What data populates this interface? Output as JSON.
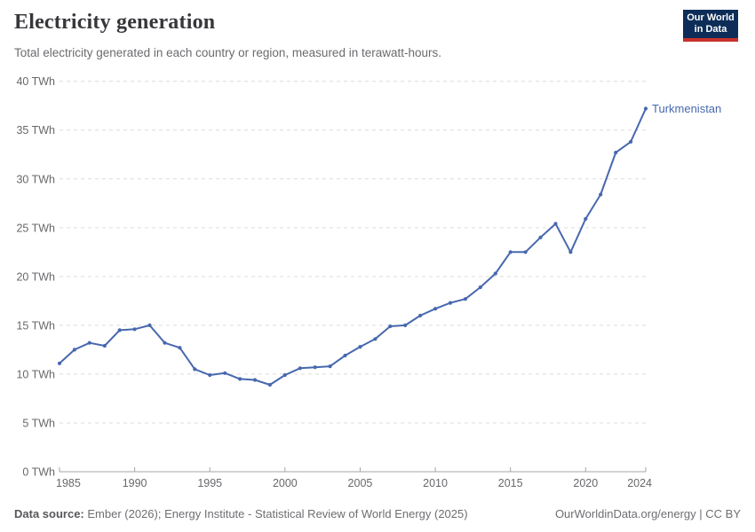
{
  "header": {
    "title": "Electricity generation",
    "subtitle": "Total electricity generated in each country or region, measured in terawatt-hours."
  },
  "logo": {
    "line1": "Our World",
    "line2": "in Data"
  },
  "footer": {
    "source_label": "Data source:",
    "source_text": " Ember (2026); Energy Institute - Statistical Review of World Energy (2025)",
    "credit": "OurWorldinData.org/energy | CC BY"
  },
  "colors": {
    "line": "#4768ae",
    "axis": "#a5a5a5",
    "gridline": "#dcdcdc",
    "tick_text": "#68686c",
    "logo_navy": "#0d2d58",
    "logo_red": "#c7312a"
  },
  "chart_data": {
    "type": "line",
    "title": "Electricity generation",
    "unit": "TWh",
    "xlabel": "",
    "ylabel": "",
    "xlim": [
      1985,
      2024
    ],
    "ylim": [
      0,
      40
    ],
    "grid": "horizontal-dashed",
    "legend": "end-of-line-label",
    "xticks": [
      1985,
      1990,
      1995,
      2000,
      2005,
      2010,
      2015,
      2020,
      2024
    ],
    "yticks": [
      0,
      5,
      10,
      15,
      20,
      25,
      30,
      35,
      40
    ],
    "ytick_suffix": " TWh",
    "x": [
      1985,
      1986,
      1987,
      1988,
      1989,
      1990,
      1991,
      1992,
      1993,
      1994,
      1995,
      1996,
      1997,
      1998,
      1999,
      2000,
      2001,
      2002,
      2003,
      2004,
      2005,
      2006,
      2007,
      2008,
      2009,
      2010,
      2011,
      2012,
      2013,
      2014,
      2015,
      2016,
      2017,
      2018,
      2019,
      2020,
      2021,
      2022,
      2023,
      2024
    ],
    "series": [
      {
        "name": "Turkmenistan",
        "color": "#4768ae",
        "values": [
          11.1,
          12.5,
          13.2,
          12.9,
          14.5,
          14.6,
          15.0,
          13.2,
          12.7,
          10.5,
          9.9,
          10.1,
          9.5,
          9.4,
          8.9,
          9.9,
          10.6,
          10.7,
          10.8,
          11.9,
          12.8,
          13.6,
          14.9,
          15.0,
          16.0,
          16.7,
          17.3,
          17.7,
          18.9,
          20.3,
          22.5,
          22.5,
          24.0,
          25.4,
          22.5,
          25.9,
          28.4,
          32.7,
          33.8,
          37.2
        ]
      }
    ]
  }
}
